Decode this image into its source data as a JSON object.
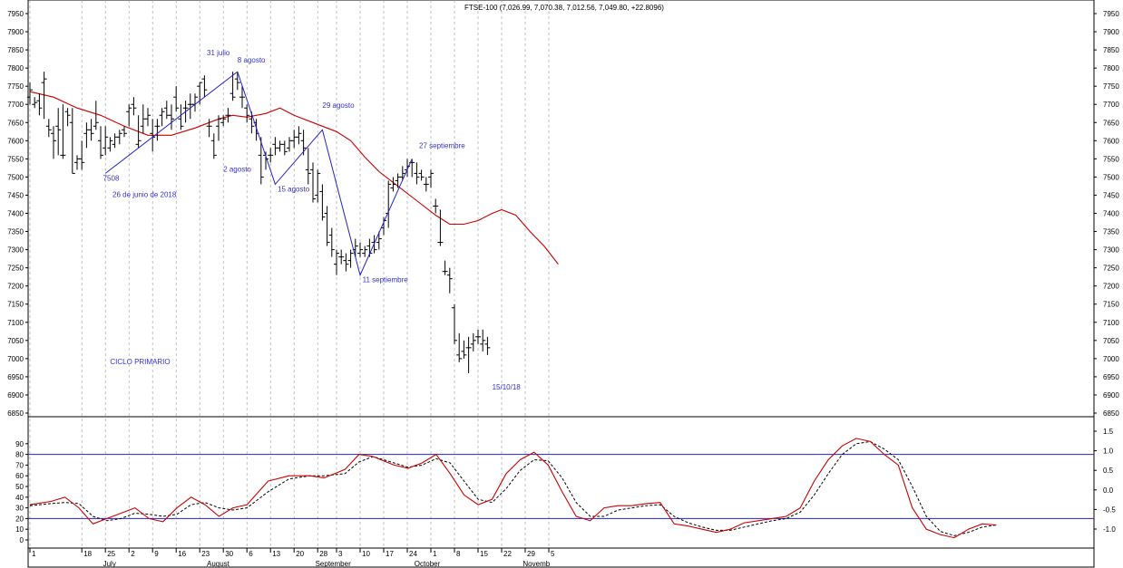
{
  "chart_data": {
    "type": "ohlc",
    "title": "FTSE-100 (7,026.99, 7,070.38, 7,012.56, 7,049.80, +22.8096)",
    "colors": {
      "price": "#000000",
      "ma": "#cc0000",
      "trend": "#2222cc",
      "osc_main": "#cc0000",
      "osc_signal": "#000000",
      "osc_band": "#2222cc",
      "grid": "#999999"
    },
    "price_axis": {
      "min": 6850,
      "max": 7950,
      "ticks": [
        "6850",
        "6900",
        "6950",
        "7000",
        "7050",
        "7100",
        "7150",
        "7200",
        "7250",
        "7300",
        "7350",
        "7400",
        "7450",
        "7500",
        "7550",
        "7600",
        "7650",
        "7700",
        "7750",
        "7800",
        "7850",
        "7900",
        "7950"
      ]
    },
    "osc_left_axis": {
      "min": 0,
      "max": 100,
      "ticks": [
        "0",
        "10",
        "20",
        "30",
        "40",
        "50",
        "60",
        "70",
        "80",
        "90"
      ]
    },
    "osc_right_axis": {
      "ticks": [
        "-1.0",
        "-0.5",
        "0.0",
        "0.5",
        "1.0",
        "1.5"
      ]
    },
    "osc_bands": [
      20,
      80
    ],
    "date_ticks": [
      {
        "label": "1",
        "i": 0
      },
      {
        "label": "18",
        "i": 11
      },
      {
        "label": "25",
        "i": 16
      },
      {
        "label": "2",
        "i": 21
      },
      {
        "label": "9",
        "i": 26
      },
      {
        "label": "16",
        "i": 31
      },
      {
        "label": "23",
        "i": 36
      },
      {
        "label": "30",
        "i": 41
      },
      {
        "label": "6",
        "i": 46
      },
      {
        "label": "13",
        "i": 51
      },
      {
        "label": "20",
        "i": 56
      },
      {
        "label": "28",
        "i": 61
      },
      {
        "label": "3",
        "i": 65
      },
      {
        "label": "10",
        "i": 70
      },
      {
        "label": "17",
        "i": 75
      },
      {
        "label": "24",
        "i": 80
      },
      {
        "label": "1",
        "i": 85
      },
      {
        "label": "8",
        "i": 90
      },
      {
        "label": "15",
        "i": 95
      },
      {
        "label": "22",
        "i": 100
      },
      {
        "label": "29",
        "i": 105
      },
      {
        "label": "5",
        "i": 110
      }
    ],
    "month_labels": [
      {
        "label": "July",
        "i": 15.5
      },
      {
        "label": "August",
        "i": 37.5
      },
      {
        "label": "September",
        "i": 60.5
      },
      {
        "label": "October",
        "i": 81.5
      },
      {
        "label": "Novemb",
        "i": 104.5
      }
    ],
    "bars": [
      [
        7720,
        7760,
        7700,
        7740
      ],
      [
        7700,
        7720,
        7690,
        7705
      ],
      [
        7710,
        7730,
        7670,
        7690
      ],
      [
        7760,
        7790,
        7660,
        7770
      ],
      [
        7640,
        7660,
        7610,
        7630
      ],
      [
        7620,
        7640,
        7550,
        7600
      ],
      [
        7640,
        7690,
        7560,
        7630
      ],
      [
        7560,
        7700,
        7550,
        7560
      ],
      [
        7680,
        7690,
        7640,
        7670
      ],
      [
        7650,
        7690,
        7510,
        7510
      ],
      [
        7540,
        7560,
        7520,
        7550
      ],
      [
        7550,
        7600,
        7520,
        7540
      ],
      [
        7620,
        7650,
        7580,
        7630
      ],
      [
        7630,
        7660,
        7600,
        7620
      ],
      [
        7640,
        7710,
        7630,
        7650
      ],
      [
        7600,
        7640,
        7550,
        7560
      ],
      [
        7580,
        7640,
        7560,
        7610
      ],
      [
        7580,
        7610,
        7570,
        7600
      ],
      [
        7590,
        7620,
        7580,
        7610
      ],
      [
        7610,
        7630,
        7590,
        7620
      ],
      [
        7630,
        7640,
        7610,
        7620
      ],
      [
        7680,
        7700,
        7640,
        7690
      ],
      [
        7700,
        7720,
        7670,
        7690
      ],
      [
        7590,
        7670,
        7580,
        7600
      ],
      [
        7640,
        7700,
        7620,
        7660
      ],
      [
        7660,
        7690,
        7640,
        7670
      ],
      [
        7620,
        7660,
        7570,
        7610
      ],
      [
        7640,
        7660,
        7600,
        7640
      ],
      [
        7670,
        7690,
        7640,
        7680
      ],
      [
        7690,
        7710,
        7660,
        7670
      ],
      [
        7670,
        7700,
        7630,
        7660
      ],
      [
        7720,
        7750,
        7680,
        7690
      ],
      [
        7660,
        7700,
        7630,
        7640
      ],
      [
        7690,
        7710,
        7650,
        7690
      ],
      [
        7700,
        7730,
        7660,
        7700
      ],
      [
        7700,
        7730,
        7680,
        7720
      ],
      [
        7750,
        7760,
        7700,
        7760
      ],
      [
        7770,
        7780,
        7720,
        7740
      ],
      [
        7640,
        7660,
        7610,
        7640
      ],
      [
        7600,
        7620,
        7550,
        7560
      ],
      [
        7640,
        7670,
        7600,
        7660
      ],
      [
        7650,
        7670,
        7640,
        7660
      ],
      [
        7670,
        7690,
        7650,
        7670
      ],
      [
        7730,
        7790,
        7710,
        7720
      ],
      [
        7770,
        7790,
        7740,
        7760
      ],
      [
        7720,
        7750,
        7690,
        7720
      ],
      [
        7690,
        7700,
        7650,
        7670
      ],
      [
        7660,
        7680,
        7620,
        7640
      ],
      [
        7650,
        7660,
        7600,
        7620
      ],
      [
        7560,
        7610,
        7480,
        7500
      ],
      [
        7560,
        7570,
        7520,
        7550
      ],
      [
        7560,
        7580,
        7540,
        7560
      ],
      [
        7590,
        7610,
        7560,
        7580
      ],
      [
        7580,
        7600,
        7570,
        7590
      ],
      [
        7590,
        7600,
        7560,
        7570
      ],
      [
        7580,
        7610,
        7570,
        7600
      ],
      [
        7600,
        7630,
        7580,
        7610
      ],
      [
        7610,
        7640,
        7590,
        7620
      ],
      [
        7600,
        7630,
        7560,
        7580
      ],
      [
        7520,
        7580,
        7480,
        7510
      ],
      [
        7520,
        7540,
        7430,
        7440
      ],
      [
        7450,
        7520,
        7430,
        7510
      ],
      [
        7460,
        7480,
        7380,
        7390
      ],
      [
        7400,
        7420,
        7310,
        7320
      ],
      [
        7340,
        7360,
        7280,
        7300
      ],
      [
        7260,
        7300,
        7230,
        7290
      ],
      [
        7280,
        7300,
        7260,
        7280
      ],
      [
        7270,
        7290,
        7240,
        7260
      ],
      [
        7270,
        7300,
        7250,
        7290
      ],
      [
        7300,
        7330,
        7280,
        7310
      ],
      [
        7290,
        7320,
        7280,
        7300
      ],
      [
        7290,
        7310,
        7280,
        7300
      ],
      [
        7310,
        7330,
        7280,
        7290
      ],
      [
        7320,
        7340,
        7290,
        7300
      ],
      [
        7320,
        7350,
        7300,
        7330
      ],
      [
        7360,
        7390,
        7340,
        7380
      ],
      [
        7400,
        7490,
        7360,
        7480
      ],
      [
        7470,
        7500,
        7460,
        7480
      ],
      [
        7490,
        7510,
        7470,
        7500
      ],
      [
        7500,
        7530,
        7490,
        7510
      ],
      [
        7520,
        7550,
        7500,
        7530
      ],
      [
        7540,
        7550,
        7500,
        7540
      ],
      [
        7510,
        7540,
        7480,
        7500
      ],
      [
        7510,
        7520,
        7490,
        7500
      ],
      [
        7480,
        7500,
        7460,
        7480
      ],
      [
        7500,
        7520,
        7470,
        7510
      ],
      [
        7420,
        7440,
        7400,
        7420
      ],
      [
        7320,
        7410,
        7310,
        7320
      ],
      [
        7240,
        7270,
        7230,
        7240
      ],
      [
        7230,
        7250,
        7180,
        7220
      ],
      [
        7140,
        7150,
        7040,
        7050
      ],
      [
        7010,
        7070,
        6990,
        7000
      ],
      [
        7020,
        7050,
        7000,
        7010
      ],
      [
        7030,
        7060,
        6960,
        7030
      ],
      [
        7040,
        7070,
        7020,
        7050
      ],
      [
        7060,
        7080,
        7040,
        7060
      ],
      [
        7040,
        7080,
        7020,
        7050
      ],
      [
        7040,
        7060,
        7010,
        7030
      ]
    ],
    "moving_average": [
      [
        0,
        7735
      ],
      [
        5,
        7720
      ],
      [
        10,
        7690
      ],
      [
        15,
        7670
      ],
      [
        20,
        7640
      ],
      [
        25,
        7615
      ],
      [
        30,
        7615
      ],
      [
        35,
        7635
      ],
      [
        40,
        7660
      ],
      [
        43,
        7670
      ],
      [
        46,
        7665
      ],
      [
        50,
        7675
      ],
      [
        53,
        7690
      ],
      [
        56,
        7670
      ],
      [
        60,
        7650
      ],
      [
        65,
        7625
      ],
      [
        68,
        7600
      ],
      [
        71,
        7555
      ],
      [
        74,
        7515
      ],
      [
        78,
        7475
      ],
      [
        82,
        7435
      ],
      [
        86,
        7395
      ],
      [
        89,
        7370
      ],
      [
        92,
        7370
      ],
      [
        95,
        7380
      ],
      [
        98,
        7400
      ],
      [
        100,
        7410
      ],
      [
        103,
        7395
      ],
      [
        106,
        7350
      ],
      [
        109,
        7310
      ],
      [
        112,
        7260
      ]
    ],
    "trend_lines": [
      [
        [
          16,
          7510
        ],
        [
          44,
          7790
        ]
      ],
      [
        [
          44,
          7790
        ],
        [
          52,
          7480
        ],
        [
          62,
          7630
        ],
        [
          70,
          7230
        ],
        [
          81,
          7550
        ]
      ]
    ],
    "annotations": [
      {
        "text": "31 julio",
        "i": 37.5,
        "v": 7835
      },
      {
        "text": "8 agosto",
        "i": 44,
        "v": 7815
      },
      {
        "text": "2 agosto",
        "i": 41,
        "v": 7515
      },
      {
        "text": "7508",
        "i": 15.5,
        "v": 7490
      },
      {
        "text": "26 de junio de 2018",
        "i": 17.5,
        "v": 7445
      },
      {
        "text": "15 agosto",
        "i": 52.5,
        "v": 7460
      },
      {
        "text": "29 agosto",
        "i": 62,
        "v": 7690
      },
      {
        "text": "11 septiembre",
        "i": 70.5,
        "v": 7210
      },
      {
        "text": "27 septiembre",
        "i": 82.5,
        "v": 7580
      },
      {
        "text": "CICLO PRIMARIO",
        "i": 17,
        "v": 6985
      },
      {
        "text": "15/10/18",
        "i": 98,
        "v": 6915
      }
    ],
    "oscillator_main": [
      [
        0,
        33
      ],
      [
        3,
        36
      ],
      [
        5,
        40
      ],
      [
        7,
        30
      ],
      [
        9,
        15
      ],
      [
        11,
        20
      ],
      [
        13,
        25
      ],
      [
        15,
        30
      ],
      [
        17,
        20
      ],
      [
        19,
        17
      ],
      [
        21,
        30
      ],
      [
        23,
        40
      ],
      [
        25,
        33
      ],
      [
        27,
        22
      ],
      [
        29,
        30
      ],
      [
        31,
        33
      ],
      [
        34,
        55
      ],
      [
        37,
        60
      ],
      [
        40,
        60
      ],
      [
        42,
        58
      ],
      [
        45,
        66
      ],
      [
        47,
        80
      ],
      [
        49,
        78
      ],
      [
        52,
        70
      ],
      [
        54,
        67
      ],
      [
        56,
        72
      ],
      [
        58,
        80
      ],
      [
        60,
        62
      ],
      [
        62,
        42
      ],
      [
        64,
        33
      ],
      [
        66,
        38
      ],
      [
        68,
        62
      ],
      [
        70,
        75
      ],
      [
        72,
        82
      ],
      [
        74,
        70
      ],
      [
        76,
        45
      ],
      [
        78,
        22
      ],
      [
        80,
        18
      ],
      [
        82,
        30
      ],
      [
        84,
        32
      ],
      [
        86,
        32
      ],
      [
        88,
        34
      ],
      [
        90,
        35
      ],
      [
        92,
        15
      ],
      [
        94,
        13
      ],
      [
        96,
        10
      ],
      [
        98,
        7
      ],
      [
        100,
        10
      ],
      [
        102,
        16
      ],
      [
        104,
        18
      ],
      [
        106,
        20
      ],
      [
        108,
        22
      ],
      [
        110,
        30
      ],
      [
        112,
        55
      ],
      [
        114,
        75
      ],
      [
        116,
        88
      ],
      [
        118,
        95
      ],
      [
        120,
        92
      ],
      [
        122,
        80
      ],
      [
        124,
        70
      ],
      [
        126,
        30
      ],
      [
        128,
        10
      ],
      [
        130,
        5
      ],
      [
        132,
        2
      ],
      [
        134,
        10
      ],
      [
        136,
        15
      ],
      [
        138,
        14
      ]
    ],
    "oscillator_signal": [
      [
        0,
        32
      ],
      [
        3,
        34
      ],
      [
        5,
        35
      ],
      [
        7,
        34
      ],
      [
        9,
        22
      ],
      [
        11,
        18
      ],
      [
        13,
        20
      ],
      [
        15,
        25
      ],
      [
        17,
        24
      ],
      [
        19,
        22
      ],
      [
        21,
        24
      ],
      [
        23,
        33
      ],
      [
        25,
        35
      ],
      [
        27,
        30
      ],
      [
        29,
        28
      ],
      [
        31,
        30
      ],
      [
        34,
        45
      ],
      [
        37,
        57
      ],
      [
        40,
        60
      ],
      [
        42,
        60
      ],
      [
        45,
        62
      ],
      [
        47,
        73
      ],
      [
        49,
        78
      ],
      [
        52,
        72
      ],
      [
        54,
        68
      ],
      [
        56,
        70
      ],
      [
        58,
        76
      ],
      [
        60,
        72
      ],
      [
        62,
        55
      ],
      [
        64,
        38
      ],
      [
        66,
        35
      ],
      [
        68,
        48
      ],
      [
        70,
        65
      ],
      [
        72,
        75
      ],
      [
        74,
        74
      ],
      [
        76,
        58
      ],
      [
        78,
        35
      ],
      [
        80,
        22
      ],
      [
        82,
        22
      ],
      [
        84,
        28
      ],
      [
        86,
        30
      ],
      [
        88,
        32
      ],
      [
        90,
        33
      ],
      [
        92,
        22
      ],
      [
        94,
        16
      ],
      [
        96,
        12
      ],
      [
        98,
        9
      ],
      [
        100,
        9
      ],
      [
        102,
        12
      ],
      [
        104,
        15
      ],
      [
        106,
        18
      ],
      [
        108,
        20
      ],
      [
        110,
        26
      ],
      [
        112,
        42
      ],
      [
        114,
        62
      ],
      [
        116,
        80
      ],
      [
        118,
        90
      ],
      [
        120,
        92
      ],
      [
        122,
        85
      ],
      [
        124,
        75
      ],
      [
        126,
        50
      ],
      [
        128,
        22
      ],
      [
        130,
        8
      ],
      [
        132,
        4
      ],
      [
        134,
        7
      ],
      [
        136,
        12
      ],
      [
        138,
        14
      ]
    ]
  }
}
